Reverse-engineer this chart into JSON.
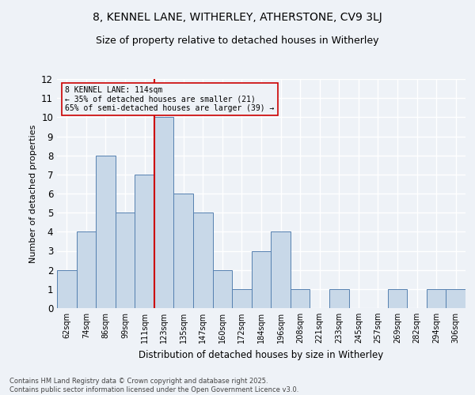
{
  "title_line1": "8, KENNEL LANE, WITHERLEY, ATHERSTONE, CV9 3LJ",
  "title_line2": "Size of property relative to detached houses in Witherley",
  "xlabel": "Distribution of detached houses by size in Witherley",
  "ylabel": "Number of detached properties",
  "categories": [
    "62sqm",
    "74sqm",
    "86sqm",
    "99sqm",
    "111sqm",
    "123sqm",
    "135sqm",
    "147sqm",
    "160sqm",
    "172sqm",
    "184sqm",
    "196sqm",
    "208sqm",
    "221sqm",
    "233sqm",
    "245sqm",
    "257sqm",
    "269sqm",
    "282sqm",
    "294sqm",
    "306sqm"
  ],
  "values": [
    2,
    4,
    8,
    5,
    7,
    10,
    6,
    5,
    2,
    1,
    3,
    4,
    1,
    0,
    1,
    0,
    0,
    1,
    0,
    1,
    1
  ],
  "bar_color": "#c8d8e8",
  "bar_edge_color": "#5580b0",
  "background_color": "#eef2f7",
  "grid_color": "#ffffff",
  "annotation_text": "8 KENNEL LANE: 114sqm\n← 35% of detached houses are smaller (21)\n65% of semi-detached houses are larger (39) →",
  "annotation_box_edge": "#cc0000",
  "vline_color": "#cc0000",
  "vline_x": 4.5,
  "ylim": [
    0,
    12
  ],
  "yticks": [
    0,
    1,
    2,
    3,
    4,
    5,
    6,
    7,
    8,
    9,
    10,
    11,
    12
  ],
  "footer_line1": "Contains HM Land Registry data © Crown copyright and database right 2025.",
  "footer_line2": "Contains public sector information licensed under the Open Government Licence v3.0."
}
